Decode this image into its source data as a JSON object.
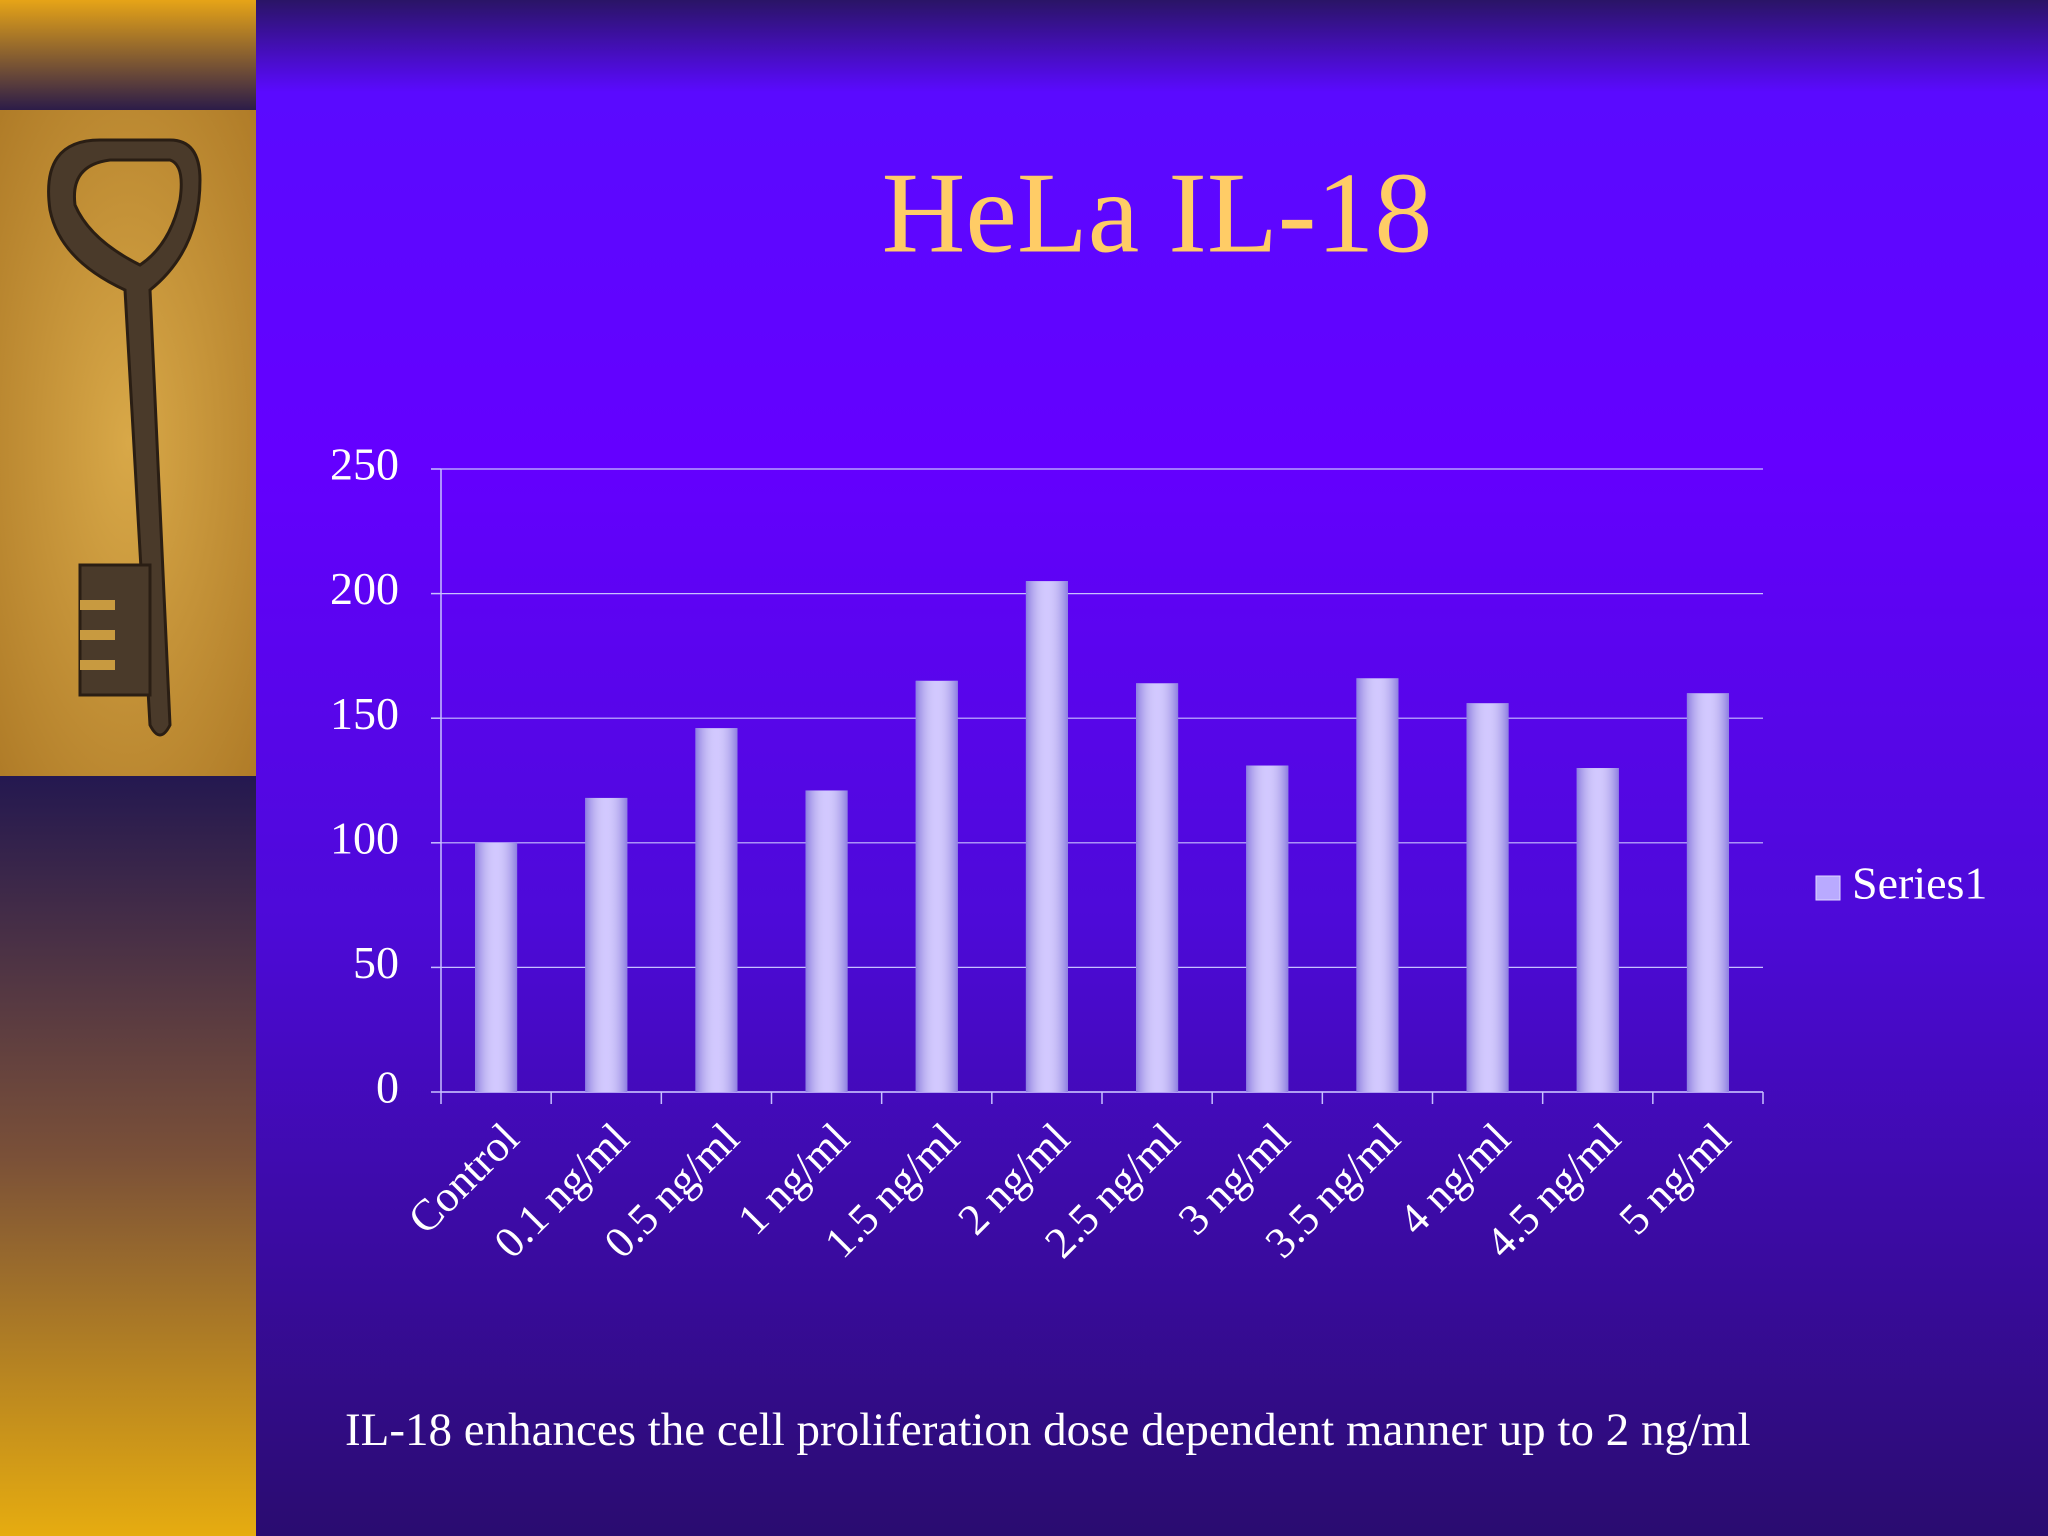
{
  "chart_data": {
    "type": "bar",
    "title": "HeLa IL-18",
    "categories": [
      "Control",
      "0.1 ng/ml",
      "0.5 ng/ml",
      "1 ng/ml",
      "1.5 ng/ml",
      "2 ng/ml",
      "2.5 ng/ml",
      "3 ng/ml",
      "3.5 ng/ml",
      "4 ng/ml",
      "4.5 ng/ml",
      "5 ng/ml"
    ],
    "series": [
      {
        "name": "Series1",
        "color": "#b9aaff",
        "values": [
          100,
          118,
          146,
          121,
          165,
          205,
          164,
          131,
          166,
          156,
          130,
          160
        ]
      }
    ],
    "ylim": [
      0,
      250
    ],
    "yticks": [
      0,
      50,
      100,
      150,
      200,
      250
    ],
    "grid": true,
    "legend": "right",
    "annotation": "IL-18 enhances the cell proliferation dose dependent manner up to 2 ng/ml"
  }
}
